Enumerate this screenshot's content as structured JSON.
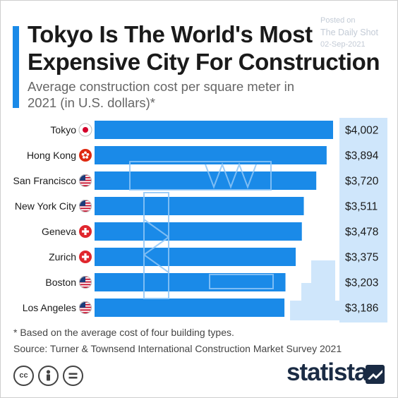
{
  "header": {
    "title": "Tokyo Is The World's Most Expensive City For Construction",
    "subtitle": "Average construction cost per square meter in 2021 (in U.S. dollars)*"
  },
  "watermark": {
    "posted_on": "Posted on",
    "source": "The Daily Shot",
    "date": "02-Sep-2021"
  },
  "colors": {
    "bar": "#1a8ae8",
    "value_panel": "#cfe6fb",
    "accent": "#1a8ae8",
    "brand": "#1a2b44"
  },
  "chart_data": {
    "type": "bar",
    "orientation": "horizontal",
    "categories": [
      "Tokyo",
      "Hong Kong",
      "San Francisco",
      "New York City",
      "Geneva",
      "Zurich",
      "Boston",
      "Los Angeles"
    ],
    "values": [
      4002,
      3894,
      3720,
      3511,
      3478,
      3375,
      3203,
      3186
    ],
    "value_labels": [
      "$4,002",
      "$3,894",
      "$3,720",
      "$3,511",
      "$3,478",
      "$3,375",
      "$3,203",
      "$3,186"
    ],
    "flags": [
      "japan",
      "hong-kong",
      "usa",
      "usa",
      "switzerland",
      "switzerland",
      "usa",
      "usa"
    ],
    "xlim": [
      0,
      4002
    ],
    "grid": false,
    "legend": "none"
  },
  "footer": {
    "footnote": "* Based on the average cost of four building types.",
    "source": "Source: Turner & Townsend International Construction Market Survey 2021",
    "license_icons": [
      "cc-icon",
      "person-icon",
      "equals-icon"
    ],
    "brand": "statista"
  }
}
